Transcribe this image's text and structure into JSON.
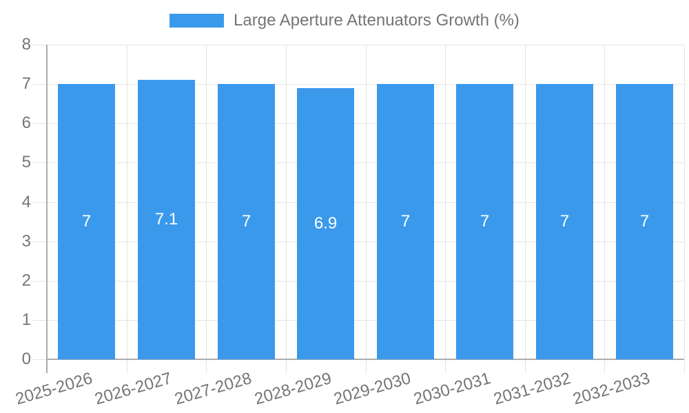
{
  "chart_data": {
    "type": "bar",
    "title": "",
    "legend": {
      "label": "Large Aperture Attenuators Growth (%)",
      "position": "top"
    },
    "categories": [
      "2025-2026",
      "2026-2027",
      "2027-2028",
      "2028-2029",
      "2029-2030",
      "2030-2031",
      "2031-2032",
      "2032-2033"
    ],
    "series": [
      {
        "name": "Large Aperture Attenuators Growth (%)",
        "values": [
          7,
          7.1,
          7,
          6.9,
          7,
          7,
          7,
          7
        ]
      }
    ],
    "value_labels": [
      "7",
      "7.1",
      "7",
      "6.9",
      "7",
      "7",
      "7",
      "7"
    ],
    "xlabel": "",
    "ylabel": "",
    "ylim": [
      0,
      8
    ],
    "yticks": [
      0,
      1,
      2,
      3,
      4,
      5,
      6,
      7,
      8
    ],
    "grid": true,
    "colors": {
      "bar": "#3B99EC",
      "grid": "#E4E4E4",
      "axis": "#ABABAB",
      "text": "#757575",
      "value_text": "#FFFFFF",
      "background": "#FFFFFF"
    }
  }
}
